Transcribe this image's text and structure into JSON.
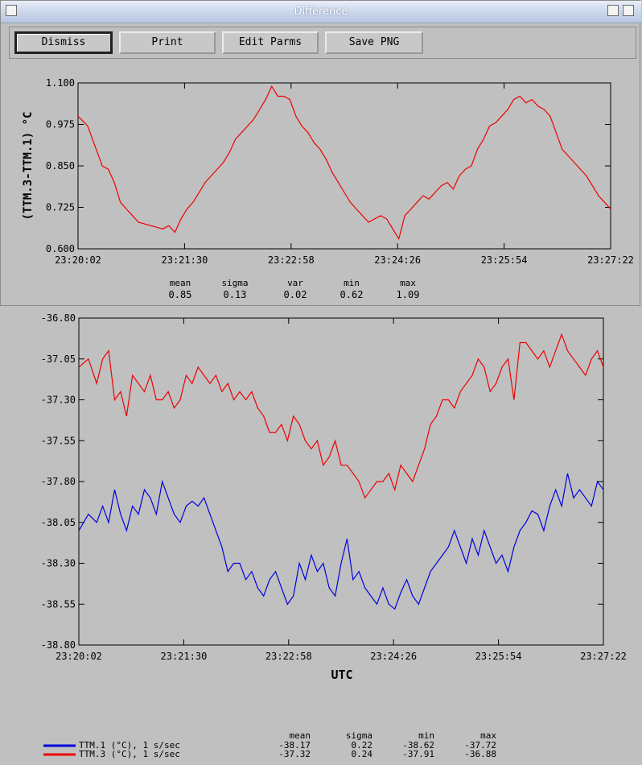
{
  "window": {
    "title": "Difference"
  },
  "toolbar": {
    "dismiss_label": "Dismiss",
    "print_label": "Print",
    "edit_parms_label": "Edit Parms",
    "save_png_label": "Save PNG"
  },
  "colors": {
    "red": "#ee0000",
    "blue": "#0000dd",
    "grid": "#000000",
    "bg": "#c0c0c0"
  },
  "chart_data": [
    {
      "type": "line",
      "ylabel": "(TTM.3-TTM.1) °C",
      "ylim": [
        0.6,
        1.1
      ],
      "yticks": [
        "0.600",
        "0.725",
        "0.850",
        "0.975",
        "1.100"
      ],
      "ytick_values": [
        0.6,
        0.725,
        0.85,
        0.975,
        1.1
      ],
      "xticks": [
        "23:20:02",
        "23:21:30",
        "23:22:58",
        "23:24:26",
        "23:25:54",
        "23:27:22"
      ],
      "xlim_seconds_after_first_tick": [
        0,
        440
      ],
      "series": [
        {
          "color": "#ee0000",
          "x": [
            0,
            8,
            15,
            20,
            25,
            30,
            35,
            40,
            45,
            50,
            55,
            60,
            65,
            70,
            75,
            80,
            85,
            90,
            95,
            100,
            105,
            110,
            115,
            120,
            125,
            130,
            135,
            140,
            145,
            150,
            155,
            160,
            165,
            170,
            175,
            180,
            185,
            190,
            195,
            200,
            205,
            210,
            215,
            220,
            225,
            230,
            235,
            240,
            245,
            250,
            255,
            260,
            265,
            270,
            275,
            280,
            285,
            290,
            295,
            300,
            305,
            310,
            315,
            320,
            325,
            330,
            335,
            340,
            345,
            350,
            355,
            360,
            365,
            370,
            375,
            380,
            385,
            390,
            395,
            400,
            405,
            410,
            415,
            420,
            425,
            430,
            435,
            440
          ],
          "values": [
            1.0,
            0.97,
            0.9,
            0.85,
            0.84,
            0.8,
            0.74,
            0.72,
            0.7,
            0.68,
            0.675,
            0.67,
            0.665,
            0.66,
            0.67,
            0.65,
            0.69,
            0.72,
            0.74,
            0.77,
            0.8,
            0.82,
            0.84,
            0.86,
            0.89,
            0.93,
            0.95,
            0.97,
            0.99,
            1.02,
            1.05,
            1.09,
            1.06,
            1.06,
            1.05,
            1.0,
            0.97,
            0.95,
            0.92,
            0.9,
            0.87,
            0.83,
            0.8,
            0.77,
            0.74,
            0.72,
            0.7,
            0.68,
            0.69,
            0.7,
            0.69,
            0.66,
            0.63,
            0.7,
            0.72,
            0.74,
            0.76,
            0.75,
            0.77,
            0.79,
            0.8,
            0.78,
            0.82,
            0.84,
            0.85,
            0.9,
            0.93,
            0.97,
            0.98,
            1.0,
            1.02,
            1.05,
            1.06,
            1.04,
            1.05,
            1.03,
            1.02,
            1.0,
            0.95,
            0.9,
            0.88,
            0.86,
            0.84,
            0.82,
            0.79,
            0.76,
            0.74,
            0.72
          ]
        }
      ],
      "stats_headers": [
        "mean",
        "sigma",
        "var",
        "min",
        "max"
      ],
      "stats_values": [
        "0.85",
        "0.13",
        "0.02",
        "0.62",
        "1.09"
      ]
    },
    {
      "type": "line",
      "xlabel": "UTC",
      "ylim": [
        -38.8,
        -36.8
      ],
      "yticks": [
        "-36.80",
        "-37.05",
        "-37.30",
        "-37.55",
        "-37.80",
        "-38.05",
        "-38.30",
        "-38.55",
        "-38.80"
      ],
      "ytick_values": [
        -36.8,
        -37.05,
        -37.3,
        -37.55,
        -37.8,
        -38.05,
        -38.3,
        -38.55,
        -38.8
      ],
      "xticks": [
        "23:20:02",
        "23:21:30",
        "23:22:58",
        "23:24:26",
        "23:25:54",
        "23:27:22"
      ],
      "xlim_seconds_after_first_tick": [
        0,
        440
      ],
      "series": [
        {
          "name": "TTM.1 (°C), 1 s/sec",
          "color": "#0000dd",
          "x": [
            0,
            8,
            15,
            20,
            25,
            30,
            35,
            40,
            45,
            50,
            55,
            60,
            65,
            70,
            75,
            80,
            85,
            90,
            95,
            100,
            105,
            110,
            115,
            120,
            125,
            130,
            135,
            140,
            145,
            150,
            155,
            160,
            165,
            170,
            175,
            180,
            185,
            190,
            195,
            200,
            205,
            210,
            215,
            220,
            225,
            230,
            235,
            240,
            245,
            250,
            255,
            260,
            265,
            270,
            275,
            280,
            285,
            290,
            295,
            300,
            305,
            310,
            315,
            320,
            325,
            330,
            335,
            340,
            345,
            350,
            355,
            360,
            365,
            370,
            375,
            380,
            385,
            390,
            395,
            400,
            405,
            410,
            415,
            420,
            425,
            430,
            435,
            440
          ],
          "values": [
            -38.1,
            -38.0,
            -38.05,
            -37.95,
            -38.05,
            -37.85,
            -38.0,
            -38.1,
            -37.95,
            -38.0,
            -37.85,
            -37.9,
            -38.0,
            -37.8,
            -37.9,
            -38.0,
            -38.05,
            -37.95,
            -37.92,
            -37.95,
            -37.9,
            -38.0,
            -38.1,
            -38.2,
            -38.35,
            -38.3,
            -38.3,
            -38.4,
            -38.35,
            -38.45,
            -38.5,
            -38.4,
            -38.35,
            -38.45,
            -38.55,
            -38.5,
            -38.3,
            -38.4,
            -38.25,
            -38.35,
            -38.3,
            -38.45,
            -38.5,
            -38.3,
            -38.15,
            -38.4,
            -38.35,
            -38.45,
            -38.5,
            -38.55,
            -38.45,
            -38.55,
            -38.58,
            -38.48,
            -38.4,
            -38.5,
            -38.55,
            -38.45,
            -38.35,
            -38.3,
            -38.25,
            -38.2,
            -38.1,
            -38.2,
            -38.3,
            -38.15,
            -38.25,
            -38.1,
            -38.2,
            -38.3,
            -38.25,
            -38.35,
            -38.2,
            -38.1,
            -38.05,
            -37.98,
            -38.0,
            -38.1,
            -37.95,
            -37.85,
            -37.95,
            -37.75,
            -37.9,
            -37.85,
            -37.9,
            -37.95,
            -37.8,
            -37.85
          ]
        },
        {
          "name": "TTM.3 (°C), 1 s/sec",
          "color": "#ee0000",
          "x": [
            0,
            8,
            15,
            20,
            25,
            30,
            35,
            40,
            45,
            50,
            55,
            60,
            65,
            70,
            75,
            80,
            85,
            90,
            95,
            100,
            105,
            110,
            115,
            120,
            125,
            130,
            135,
            140,
            145,
            150,
            155,
            160,
            165,
            170,
            175,
            180,
            185,
            190,
            195,
            200,
            205,
            210,
            215,
            220,
            225,
            230,
            235,
            240,
            245,
            250,
            255,
            260,
            265,
            270,
            275,
            280,
            285,
            290,
            295,
            300,
            305,
            310,
            315,
            320,
            325,
            330,
            335,
            340,
            345,
            350,
            355,
            360,
            365,
            370,
            375,
            380,
            385,
            390,
            395,
            400,
            405,
            410,
            415,
            420,
            425,
            430,
            435,
            440
          ],
          "values": [
            -37.1,
            -37.05,
            -37.2,
            -37.05,
            -37.0,
            -37.3,
            -37.25,
            -37.4,
            -37.15,
            -37.2,
            -37.25,
            -37.15,
            -37.3,
            -37.3,
            -37.25,
            -37.35,
            -37.3,
            -37.15,
            -37.2,
            -37.1,
            -37.15,
            -37.2,
            -37.15,
            -37.25,
            -37.2,
            -37.3,
            -37.25,
            -37.3,
            -37.25,
            -37.35,
            -37.4,
            -37.5,
            -37.5,
            -37.45,
            -37.55,
            -37.4,
            -37.45,
            -37.55,
            -37.6,
            -37.55,
            -37.7,
            -37.65,
            -37.55,
            -37.7,
            -37.7,
            -37.75,
            -37.8,
            -37.9,
            -37.85,
            -37.8,
            -37.8,
            -37.75,
            -37.85,
            -37.7,
            -37.75,
            -37.8,
            -37.7,
            -37.6,
            -37.45,
            -37.4,
            -37.3,
            -37.3,
            -37.35,
            -37.25,
            -37.2,
            -37.15,
            -37.05,
            -37.1,
            -37.25,
            -37.2,
            -37.1,
            -37.05,
            -37.3,
            -36.95,
            -36.95,
            -37.0,
            -37.05,
            -37.0,
            -37.1,
            -37.0,
            -36.9,
            -37.0,
            -37.05,
            -37.1,
            -37.15,
            -37.05,
            -37.0,
            -37.1
          ]
        }
      ],
      "stats_headers": [
        "mean",
        "sigma",
        "min",
        "max"
      ],
      "stats_rows": [
        [
          "-38.17",
          "0.22",
          "-38.62",
          "-37.72"
        ],
        [
          "-37.32",
          "0.24",
          "-37.91",
          "-36.88"
        ]
      ]
    }
  ]
}
